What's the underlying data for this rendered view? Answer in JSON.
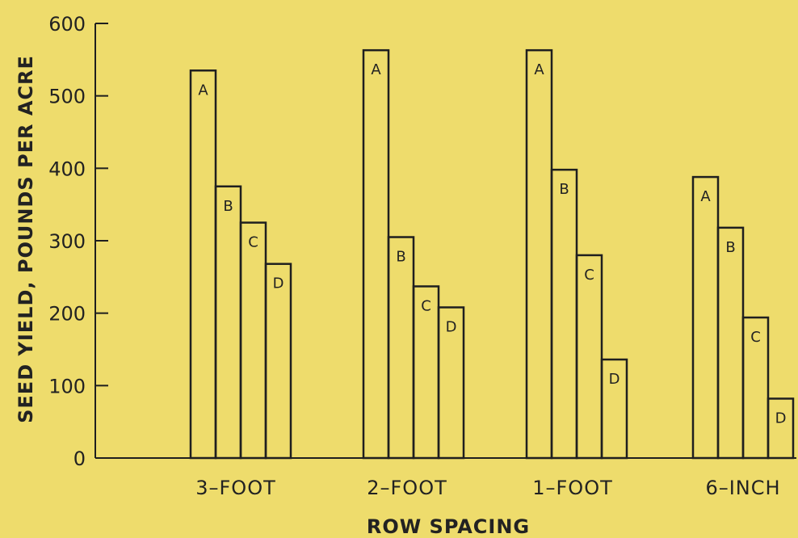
{
  "chart_data": {
    "type": "bar",
    "title": "",
    "xlabel": "ROW SPACING",
    "ylabel": "SEED YIELD, POUNDS PER ACRE",
    "ylim": [
      0,
      600
    ],
    "yticks": [
      "0",
      "100",
      "200",
      "300",
      "400",
      "500",
      "600"
    ],
    "categories": [
      "3–FOOT",
      "2–FOOT",
      "1–FOOT",
      "6–INCH"
    ],
    "series": [
      {
        "name": "A",
        "values": [
          535,
          563,
          563,
          388
        ]
      },
      {
        "name": "B",
        "values": [
          375,
          305,
          398,
          318
        ]
      },
      {
        "name": "C",
        "values": [
          325,
          237,
          280,
          194
        ]
      },
      {
        "name": "D",
        "values": [
          268,
          208,
          136,
          82
        ]
      }
    ],
    "grid": false,
    "legend": "none",
    "colors": {
      "background": "#eedc6c",
      "bar_outline": "#1f1f1f",
      "text": "#222222"
    }
  }
}
